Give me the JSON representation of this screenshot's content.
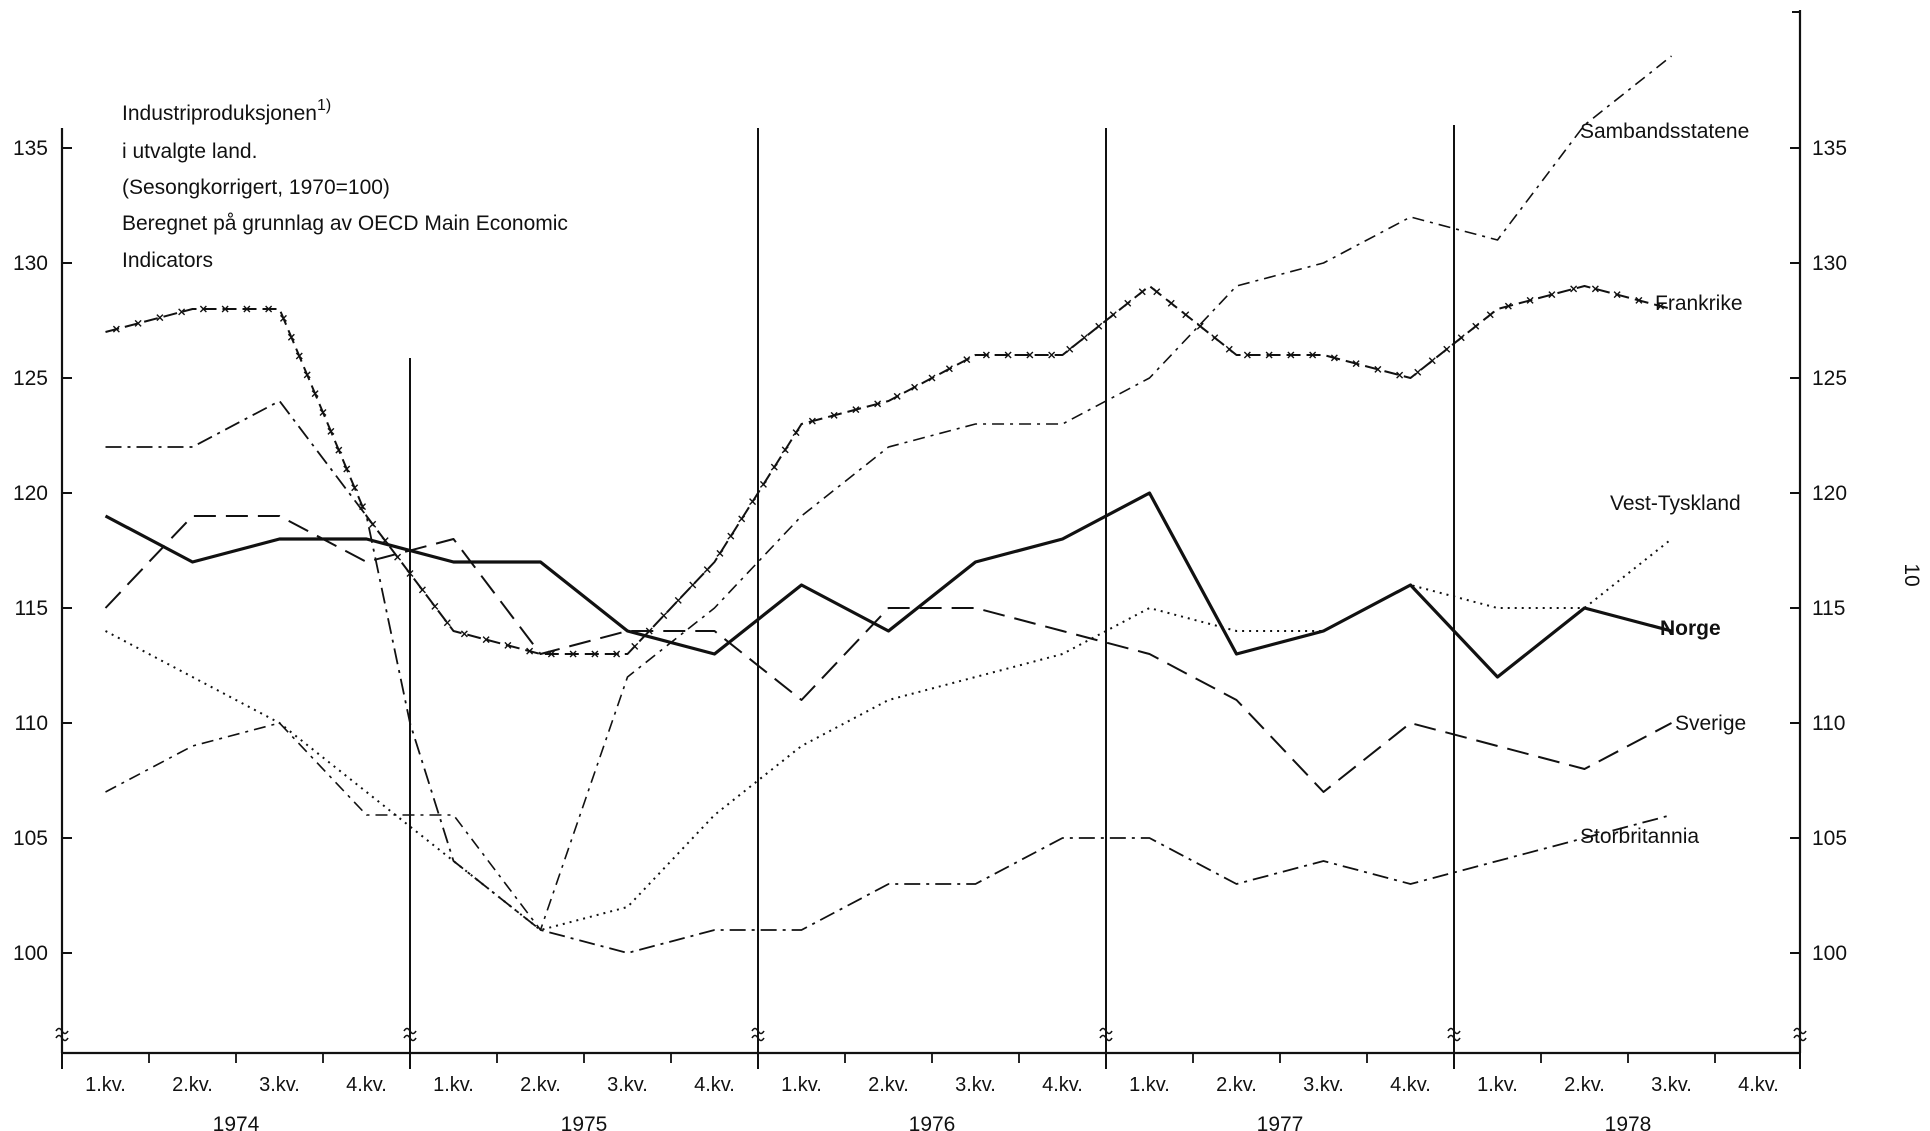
{
  "title_lines": [
    "Industriproduksjonen",
    "i utvalgte land.",
    "(Sesongkorrigert, 1970=100)",
    "Beregnet på grunnlag av OECD Main Economic",
    "Indicators"
  ],
  "title_footnote": "1)",
  "page_number": "10",
  "colors": {
    "ink": "#111111",
    "background": "#ffffff"
  },
  "chart_data": {
    "type": "line",
    "title": "Industriproduksjonen i utvalgte land. (Sesongkorrigert, 1970=100) Beregnet på grunnlag av OECD Main Economic Indicators",
    "quarters": [
      "1.kv.",
      "2.kv.",
      "3.kv.",
      "4.kv.",
      "1.kv.",
      "2.kv.",
      "3.kv.",
      "4.kv.",
      "1.kv.",
      "2.kv.",
      "3.kv.",
      "4.kv.",
      "1.kv.",
      "2.kv.",
      "3.kv.",
      "4.kv.",
      "1.kv.",
      "2.kv.",
      "3.kv.",
      "4.kv."
    ],
    "years": [
      "1974",
      "1975",
      "1976",
      "1977",
      "1978"
    ],
    "x": [
      0.5,
      1.1,
      1.6,
      2.1,
      2.6,
      3.1,
      3.6,
      4.1,
      4.6,
      5.1,
      5.6,
      6.1,
      6.6,
      7.1,
      7.6,
      8.1,
      8.6,
      9.1,
      9.6,
      10.1,
      10.6,
      11.1,
      11.6,
      12.1,
      12.6,
      13.1,
      13.6,
      14.1,
      14.6,
      15.1,
      15.6,
      16.1,
      16.6,
      17.1,
      17.6,
      18.1,
      18.6,
      19.1
    ],
    "yticks": [
      100,
      105,
      110,
      115,
      120,
      125,
      130,
      135
    ],
    "ylim": [
      95,
      138
    ],
    "series": [
      {
        "name": "Sambandsstatene",
        "style": "dash-dot",
        "points": [
          [
            0.5,
            122
          ],
          [
            1.5,
            122
          ],
          [
            2.5,
            124
          ],
          [
            3.5,
            119
          ],
          [
            4.0,
            110
          ],
          [
            4.5,
            104
          ],
          [
            5.5,
            101
          ],
          [
            6.5,
            100
          ],
          [
            7.5,
            101
          ],
          [
            8.5,
            101
          ],
          [
            9.5,
            103
          ],
          [
            10.5,
            103
          ],
          [
            11.5,
            105
          ],
          [
            12.5,
            105
          ],
          [
            13.5,
            103
          ],
          [
            14.5,
            104
          ],
          [
            15.5,
            103
          ],
          [
            16.5,
            104
          ],
          [
            17.5,
            105
          ],
          [
            18.5,
            106
          ]
        ]
      },
      {
        "name": "Frankrike",
        "style": "dash-cross",
        "points": [
          [
            0.5,
            127
          ],
          [
            1.5,
            128
          ],
          [
            2.5,
            128
          ],
          [
            3.5,
            119
          ],
          [
            4.5,
            114
          ],
          [
            5.5,
            113
          ],
          [
            6.5,
            113
          ],
          [
            7.5,
            117
          ],
          [
            8.5,
            123
          ],
          [
            9.5,
            124
          ],
          [
            10.5,
            126
          ],
          [
            11.5,
            126
          ],
          [
            12.5,
            129
          ],
          [
            13.5,
            126
          ],
          [
            14.5,
            126
          ],
          [
            15.5,
            125
          ],
          [
            16.5,
            128
          ],
          [
            17.5,
            129
          ],
          [
            18.5,
            128
          ]
        ]
      },
      {
        "name": "Vest-Tyskland",
        "style": "dotted",
        "points": [
          [
            0.5,
            114
          ],
          [
            1.5,
            112
          ],
          [
            2.5,
            110
          ],
          [
            3.5,
            107
          ],
          [
            4.5,
            104
          ],
          [
            5.5,
            101
          ],
          [
            6.5,
            102
          ],
          [
            7.5,
            106
          ],
          [
            8.5,
            109
          ],
          [
            9.5,
            111
          ],
          [
            10.5,
            112
          ],
          [
            11.5,
            113
          ],
          [
            12.5,
            115
          ],
          [
            13.5,
            114
          ],
          [
            14.5,
            114
          ],
          [
            15.5,
            116
          ],
          [
            16.5,
            115
          ],
          [
            17.5,
            115
          ],
          [
            18.5,
            118
          ]
        ]
      },
      {
        "name": "Norge",
        "style": "solid-bold",
        "points": [
          [
            0.5,
            119
          ],
          [
            1.5,
            117
          ],
          [
            2.5,
            118
          ],
          [
            3.5,
            118
          ],
          [
            4.5,
            117
          ],
          [
            5.5,
            117
          ],
          [
            6.5,
            114
          ],
          [
            7.5,
            113
          ],
          [
            8.5,
            116
          ],
          [
            9.5,
            114
          ],
          [
            10.5,
            117
          ],
          [
            11.5,
            118
          ],
          [
            12.5,
            120
          ],
          [
            13.5,
            113
          ],
          [
            14.5,
            114
          ],
          [
            15.5,
            116
          ],
          [
            16.5,
            112
          ],
          [
            17.5,
            115
          ],
          [
            18.5,
            114
          ]
        ]
      },
      {
        "name": "Sverige",
        "style": "dashed",
        "points": [
          [
            0.5,
            115
          ],
          [
            1.5,
            119
          ],
          [
            2.5,
            119
          ],
          [
            3.5,
            117
          ],
          [
            4.5,
            118
          ],
          [
            5.5,
            113
          ],
          [
            6.5,
            114
          ],
          [
            7.5,
            114
          ],
          [
            8.5,
            111
          ],
          [
            9.5,
            115
          ],
          [
            10.5,
            115
          ],
          [
            11.5,
            114
          ],
          [
            12.5,
            113
          ],
          [
            13.5,
            111
          ],
          [
            14.5,
            107
          ],
          [
            15.5,
            110
          ],
          [
            16.5,
            109
          ],
          [
            17.5,
            108
          ],
          [
            18.5,
            110
          ]
        ]
      },
      {
        "name": "Storbritannia",
        "style": "dash-dot-thin",
        "points": [
          [
            0.5,
            107
          ],
          [
            1.5,
            109
          ],
          [
            2.5,
            110
          ],
          [
            3.5,
            106
          ],
          [
            4.5,
            106
          ],
          [
            5.5,
            101
          ],
          [
            6.5,
            112
          ],
          [
            7.5,
            115
          ],
          [
            8.5,
            119
          ],
          [
            9.5,
            122
          ],
          [
            10.5,
            123
          ],
          [
            11.5,
            123
          ],
          [
            12.5,
            125
          ],
          [
            13.5,
            129
          ],
          [
            14.5,
            130
          ],
          [
            15.5,
            132
          ],
          [
            16.5,
            131
          ],
          [
            17.5,
            136
          ],
          [
            18.5,
            139
          ]
        ]
      }
    ],
    "series_labels": {
      "Sambandsstatene": "Sambandsstatene",
      "Frankrike": "Frankrike",
      "Vest-Tyskland": "Vest-Tyskland",
      "Norge": "Norge",
      "Sverige": "Sverige",
      "Storbritannia": "Storbritannia"
    },
    "grid": false
  }
}
